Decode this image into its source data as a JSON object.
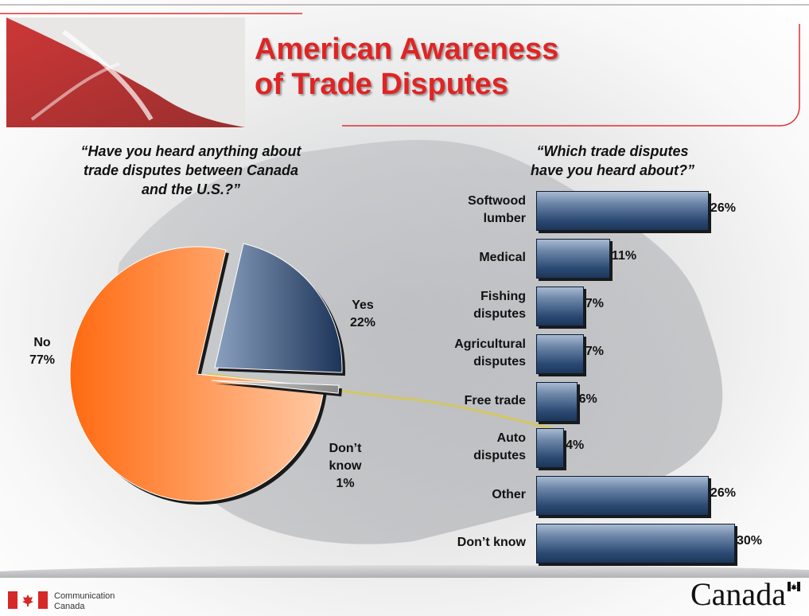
{
  "title_line1": "American Awareness",
  "title_line2": "of Trade Disputes",
  "left_question": {
    "line1": "“Have you heard anything about",
    "line2": "trade disputes between Canada",
    "line3": "and the U.S.?”"
  },
  "right_question": {
    "line1": "“Which trade disputes",
    "line2": "have you heard about?”"
  },
  "footer": {
    "dept_line1": "Communication",
    "dept_line2": "Canada",
    "wordmark": "Canada"
  },
  "colors": {
    "title": "#e02424",
    "pie_no": "#ff8a3d",
    "pie_yes": "#2b4a73",
    "pie_dont_know": "#b0b0b0",
    "bar": "#2b4a73"
  },
  "chart_data": [
    {
      "type": "pie",
      "slices": [
        {
          "label_line1": "No",
          "label_line2": "77%",
          "value": 77
        },
        {
          "label_line1": "Yes",
          "label_line2": "22%",
          "value": 22
        },
        {
          "label_line1": "Don’t",
          "label_line2": "know",
          "label_line3": "1%",
          "value": 1
        }
      ]
    },
    {
      "type": "bar",
      "orientation": "horizontal",
      "categories": [
        {
          "line1": "Softwood",
          "line2": "lumber"
        },
        {
          "line1": "Medical",
          "line2": ""
        },
        {
          "line1": "Fishing",
          "line2": "disputes"
        },
        {
          "line1": "Agricultural",
          "line2": "disputes"
        },
        {
          "line1": "Free trade",
          "line2": ""
        },
        {
          "line1": "Auto",
          "line2": "disputes"
        },
        {
          "line1": "Other",
          "line2": ""
        },
        {
          "line1": "Don’t know",
          "line2": ""
        }
      ],
      "values": [
        26,
        11,
        7,
        7,
        6,
        4,
        26,
        30
      ],
      "value_labels": [
        "26%",
        "11%",
        "7%",
        "7%",
        "6%",
        "4%",
        "26%",
        "30%"
      ],
      "xlim": [
        0,
        30
      ]
    }
  ]
}
